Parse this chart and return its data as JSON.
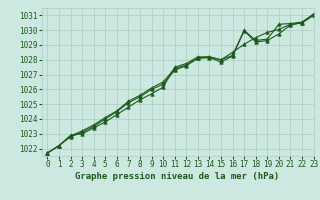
{
  "title": "Graphe pression niveau de la mer (hPa)",
  "bg_color": "#cce8e0",
  "grid_color": "#aaccc4",
  "line_color": "#1a5c1a",
  "text_color": "#1a5c1a",
  "xlim": [
    -0.5,
    23
  ],
  "ylim": [
    1021.5,
    1031.5
  ],
  "yticks": [
    1022,
    1023,
    1024,
    1025,
    1026,
    1027,
    1028,
    1029,
    1030,
    1031
  ],
  "xticks": [
    0,
    1,
    2,
    3,
    4,
    5,
    6,
    7,
    8,
    9,
    10,
    11,
    12,
    13,
    14,
    15,
    16,
    17,
    18,
    19,
    20,
    21,
    22,
    23
  ],
  "series": [
    [
      1021.7,
      1022.2,
      1022.9,
      1023.0,
      1023.4,
      1023.8,
      1024.3,
      1024.8,
      1025.3,
      1025.7,
      1026.15,
      1027.5,
      1027.75,
      1028.2,
      1028.2,
      1028.0,
      1028.5,
      1029.05,
      1029.5,
      1029.85,
      1030.05,
      1030.4,
      1030.5,
      1031.05
    ],
    [
      1021.7,
      1022.2,
      1022.8,
      1023.1,
      1023.5,
      1024.0,
      1024.5,
      1025.1,
      1025.5,
      1026.0,
      1026.35,
      1027.3,
      1027.6,
      1028.1,
      1028.15,
      1027.85,
      1028.25,
      1029.95,
      1029.2,
      1029.3,
      1029.75,
      1030.35,
      1030.5,
      1031.0
    ],
    [
      1021.7,
      1022.2,
      1022.85,
      1023.2,
      1023.6,
      1024.1,
      1024.55,
      1025.2,
      1025.6,
      1026.1,
      1026.5,
      1027.4,
      1027.65,
      1028.1,
      1028.2,
      1028.0,
      1028.3,
      1030.0,
      1029.3,
      1029.4,
      1030.4,
      1030.45,
      1030.55,
      1031.1
    ]
  ],
  "marker": "^",
  "marker_size": 2.5,
  "linewidth": 0.8,
  "tick_fontsize": 5.5,
  "title_fontsize": 6.5
}
